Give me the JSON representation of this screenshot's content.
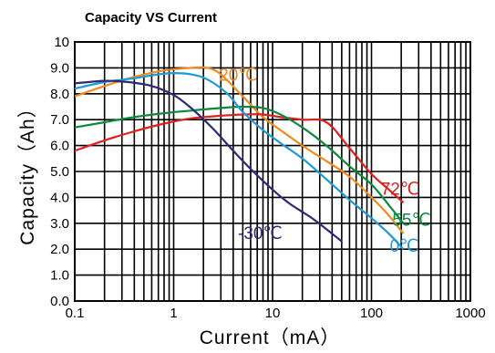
{
  "chart_data": {
    "type": "line",
    "title": "Capacity VS Current",
    "xlabel": "Current（mA）",
    "ylabel": "Capacity（Ah）",
    "xscale": "log",
    "xlim": [
      0.1,
      1000
    ],
    "ylim": [
      0.0,
      10
    ],
    "xticks": [
      "0.1",
      "1",
      "10",
      "100",
      "1000"
    ],
    "yticks": [
      "0.0",
      "1.0",
      "2.0",
      "3.0",
      "4.0",
      "5.0",
      "6.0",
      "7.0",
      "8.0",
      "9.0",
      "10"
    ],
    "grid": true,
    "series": [
      {
        "name": "20℃",
        "color": "#f08a1c",
        "x": [
          0.1,
          0.2,
          0.4,
          0.8,
          1.5,
          2.2,
          3,
          5,
          8,
          12,
          20,
          35,
          60,
          100,
          150,
          210
        ],
        "y": [
          7.9,
          8.3,
          8.65,
          8.9,
          9.0,
          9.0,
          8.75,
          7.9,
          7.1,
          6.6,
          6.0,
          5.4,
          4.8,
          4.0,
          3.3,
          2.6
        ]
      },
      {
        "name": "72℃",
        "color": "#e0201e",
        "x": [
          0.1,
          0.2,
          0.4,
          0.8,
          1.5,
          3,
          5,
          8,
          12,
          20,
          35,
          60,
          100,
          150,
          210
        ],
        "y": [
          5.8,
          6.2,
          6.55,
          6.85,
          7.05,
          7.15,
          7.2,
          7.2,
          7.1,
          7.0,
          6.9,
          5.9,
          4.9,
          4.3,
          3.8
        ]
      },
      {
        "name": "55℃",
        "color": "#0a8a3a",
        "x": [
          0.1,
          0.2,
          0.4,
          0.8,
          1.5,
          3,
          5,
          8,
          12,
          20,
          35,
          60,
          100,
          150,
          210
        ],
        "y": [
          6.7,
          6.9,
          7.1,
          7.25,
          7.35,
          7.45,
          7.5,
          7.45,
          7.2,
          6.7,
          6.0,
          5.2,
          4.5,
          3.7,
          3.0
        ]
      },
      {
        "name": "0℃",
        "color": "#1e9ad6",
        "x": [
          0.1,
          0.2,
          0.4,
          0.7,
          1.0,
          1.5,
          2.2,
          3.5,
          5,
          8,
          12,
          20,
          35,
          60,
          100,
          150,
          210
        ],
        "y": [
          8.2,
          8.45,
          8.6,
          8.75,
          8.8,
          8.75,
          8.55,
          8.0,
          7.3,
          6.6,
          6.1,
          5.5,
          4.7,
          3.9,
          3.2,
          2.6,
          2.0
        ]
      },
      {
        "name": "-30℃",
        "color": "#2b2a7a",
        "x": [
          0.1,
          0.2,
          0.35,
          0.6,
          1.0,
          1.5,
          2.5,
          4,
          6,
          10,
          15,
          25,
          40,
          50
        ],
        "y": [
          8.4,
          8.5,
          8.45,
          8.3,
          7.95,
          7.45,
          6.65,
          5.8,
          5.1,
          4.3,
          3.75,
          3.2,
          2.6,
          2.3
        ]
      }
    ],
    "annotations": [
      {
        "text": "20℃",
        "x": 4.5,
        "y": 8.5,
        "color": "#f08a1c"
      },
      {
        "text": "72℃",
        "x": 195,
        "y": 4.1,
        "color": "#e0201e"
      },
      {
        "text": "55℃",
        "x": 255,
        "y": 2.9,
        "color": "#0a8a3a"
      },
      {
        "text": "0℃",
        "x": 215,
        "y": 1.9,
        "color": "#1e9ad6"
      },
      {
        "text": "-30℃",
        "x": 7.5,
        "y": 2.4,
        "color": "#2b2a7a"
      }
    ]
  }
}
